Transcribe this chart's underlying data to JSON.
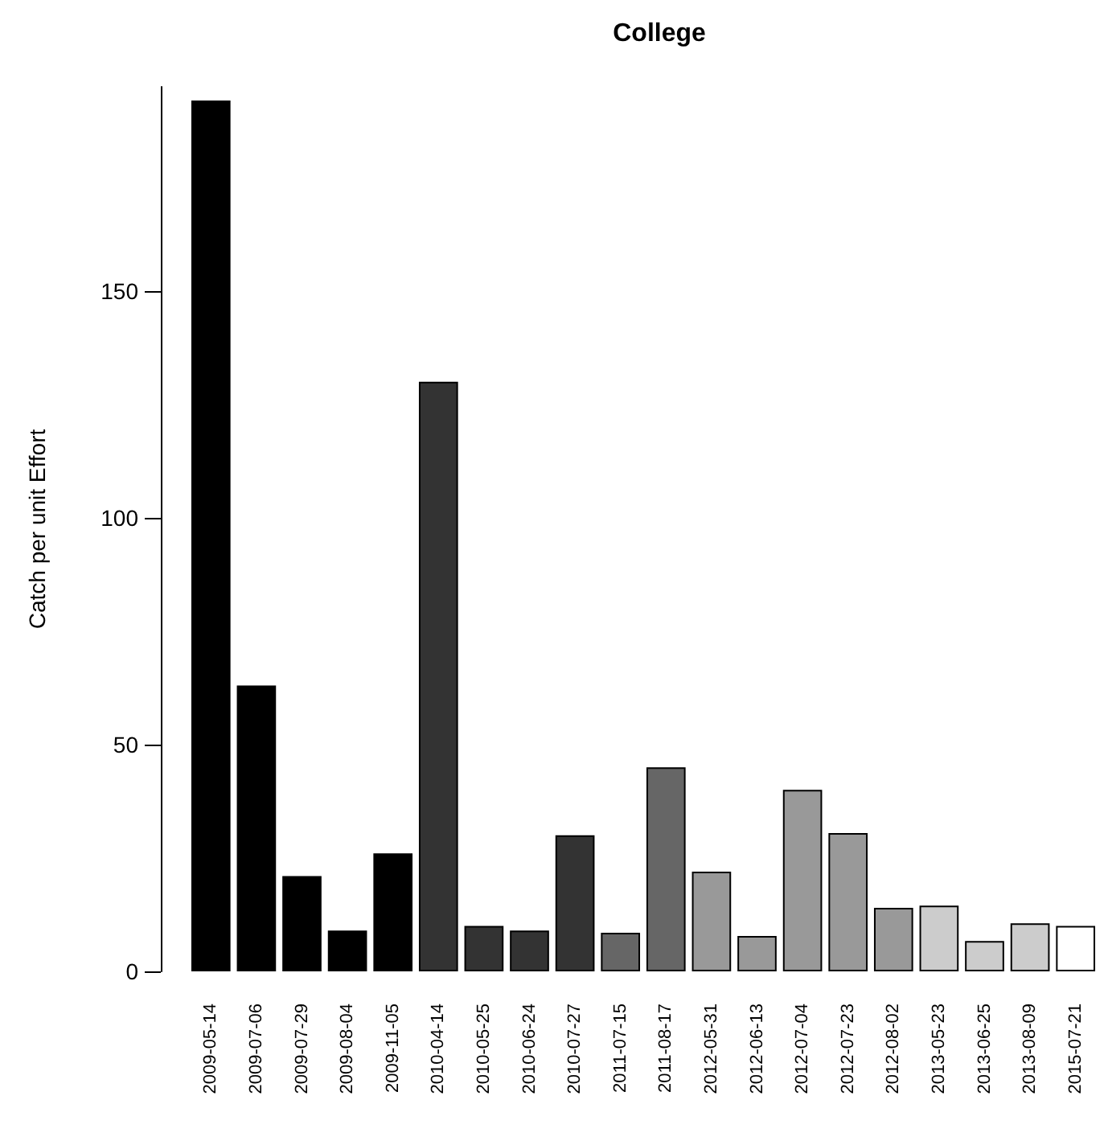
{
  "chart_data": {
    "type": "bar",
    "title": "College",
    "ylabel": "Catch per unit Effort",
    "categories": [
      "2009-05-14",
      "2009-07-06",
      "2009-07-29",
      "2009-08-04",
      "2009-11-05",
      "2010-04-14",
      "2010-05-25",
      "2010-06-24",
      "2010-07-27",
      "2011-07-15",
      "2011-08-17",
      "2012-05-31",
      "2012-06-13",
      "2012-07-04",
      "2012-07-23",
      "2012-08-02",
      "2013-05-23",
      "2013-06-25",
      "2013-08-09",
      "2015-07-21"
    ],
    "values": [
      192,
      63,
      21,
      9,
      26,
      130,
      10,
      9,
      30,
      8.5,
      45,
      22,
      7.8,
      40,
      30.5,
      14,
      14.5,
      6.7,
      10.6,
      10
    ],
    "colors": [
      "#000000",
      "#000000",
      "#000000",
      "#000000",
      "#000000",
      "#333333",
      "#333333",
      "#333333",
      "#333333",
      "#666666",
      "#666666",
      "#999999",
      "#999999",
      "#999999",
      "#999999",
      "#999999",
      "#cccccc",
      "#cccccc",
      "#cccccc",
      "#ffffff"
    ],
    "ylim": [
      0,
      195
    ],
    "yticks": [
      0,
      50,
      100,
      150
    ],
    "grid": false
  }
}
